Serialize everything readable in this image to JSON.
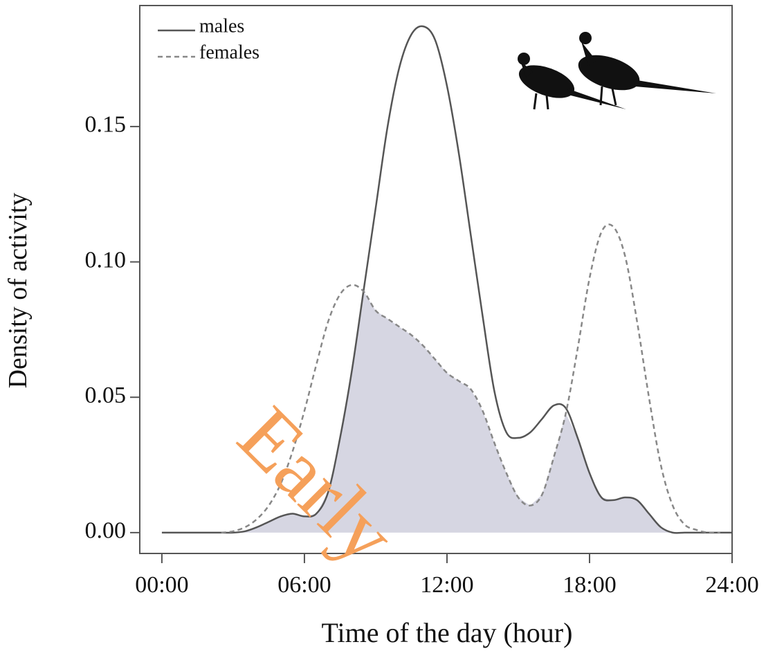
{
  "chart_data": {
    "type": "line",
    "y_label": "Density of activity",
    "x_label": "Time of the day (hour)",
    "watermark": "Early",
    "x": [
      0,
      0.5,
      1,
      1.5,
      2,
      2.5,
      3,
      3.5,
      4,
      4.5,
      5,
      5.5,
      6,
      6.5,
      7,
      7.5,
      8,
      8.5,
      9,
      9.5,
      10,
      10.5,
      11,
      11.5,
      12,
      12.5,
      13,
      13.5,
      14,
      14.5,
      15,
      15.5,
      16,
      16.5,
      17,
      17.5,
      18,
      18.5,
      19,
      19.5,
      20,
      20.5,
      21,
      21.5,
      22,
      22.5,
      23,
      23.5,
      24
    ],
    "series": [
      {
        "name": "males",
        "color": "#555555",
        "dash": false,
        "values": [
          0,
          0,
          0,
          0,
          0,
          0,
          0,
          0.0005,
          0.002,
          0.004,
          0.006,
          0.007,
          0.006,
          0.007,
          0.015,
          0.035,
          0.06,
          0.09,
          0.12,
          0.15,
          0.172,
          0.184,
          0.187,
          0.182,
          0.165,
          0.14,
          0.11,
          0.08,
          0.052,
          0.037,
          0.035,
          0.037,
          0.042,
          0.047,
          0.046,
          0.035,
          0.022,
          0.013,
          0.012,
          0.013,
          0.012,
          0.007,
          0.002,
          0,
          0,
          0,
          0,
          0,
          0
        ]
      },
      {
        "name": "females",
        "color": "#888888",
        "dash": true,
        "values": [
          null,
          null,
          null,
          null,
          null,
          0,
          0.0005,
          0.002,
          0.005,
          0.01,
          0.018,
          0.03,
          0.045,
          0.062,
          0.078,
          0.088,
          0.0915,
          0.089,
          0.082,
          0.079,
          0.076,
          0.073,
          0.069,
          0.064,
          0.059,
          0.056,
          0.053,
          0.045,
          0.033,
          0.022,
          0.013,
          0.01,
          0.014,
          0.028,
          0.044,
          0.068,
          0.094,
          0.111,
          0.113,
          0.102,
          0.078,
          0.05,
          0.025,
          0.01,
          0.003,
          0.001,
          0,
          0,
          null
        ]
      }
    ],
    "overlap_color": "#d6d6e2",
    "xlim": [
      -0.93,
      24.0
    ],
    "ylim": [
      -0.0077,
      0.1947
    ],
    "xticks": [
      {
        "value": 0,
        "label": "00:00"
      },
      {
        "value": 6,
        "label": "06:00"
      },
      {
        "value": 12,
        "label": "12:00"
      },
      {
        "value": 18,
        "label": "18:00"
      },
      {
        "value": 24,
        "label": "24:00"
      }
    ],
    "yticks": [
      {
        "value": 0,
        "label": "0.00"
      },
      {
        "value": 0.05,
        "label": "0.05"
      },
      {
        "value": 0.1,
        "label": "0.10"
      },
      {
        "value": 0.15,
        "label": "0.15"
      }
    ],
    "legend": "top-left"
  }
}
